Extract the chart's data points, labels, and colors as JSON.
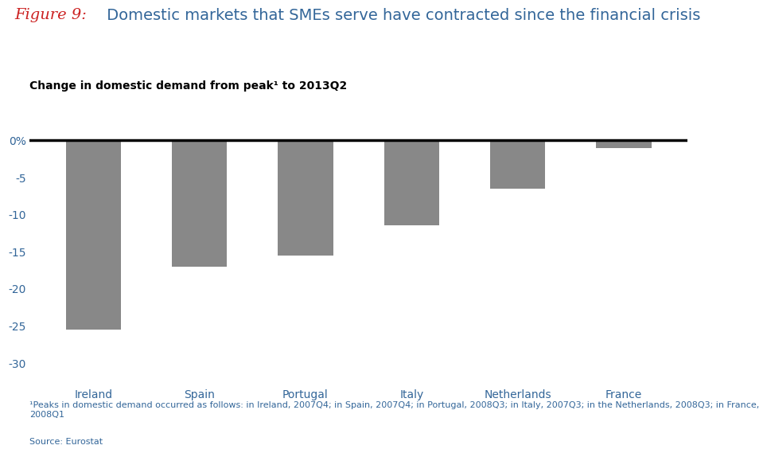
{
  "title_figure": "Figure 9:",
  "title_main": " Domestic markets that SMEs serve have contracted since the financial crisis",
  "subtitle": "Change in domestic demand from peak¹ to 2013Q2",
  "categories": [
    "Ireland",
    "Spain",
    "Portugal",
    "Italy",
    "Netherlands",
    "France"
  ],
  "values": [
    -25.5,
    -17.0,
    -15.5,
    -11.5,
    -6.5,
    -1.0
  ],
  "bar_color": "#888888",
  "bar_width": 0.52,
  "ylim": [
    -32,
    1.5
  ],
  "yticks": [
    0,
    -5,
    -10,
    -15,
    -20,
    -25,
    -30
  ],
  "ytick_labels": [
    "0%",
    "-5",
    "-10",
    "-15",
    "-20",
    "-25",
    "-30"
  ],
  "footnote": "¹Peaks in domestic demand occurred as follows: in Ireland, 2007Q4; in Spain, 2007Q4; in Portugal, 2008Q3; in Italy, 2007Q3; in the Netherlands, 2008Q3; in France,\n2008Q1",
  "source": "Source: Eurostat",
  "figure_label_color": "#cc2222",
  "text_color": "#336699",
  "background_color": "#ffffff",
  "title_fontsize": 14,
  "subtitle_fontsize": 10,
  "tick_fontsize": 10,
  "label_fontsize": 10,
  "footnote_fontsize": 8
}
